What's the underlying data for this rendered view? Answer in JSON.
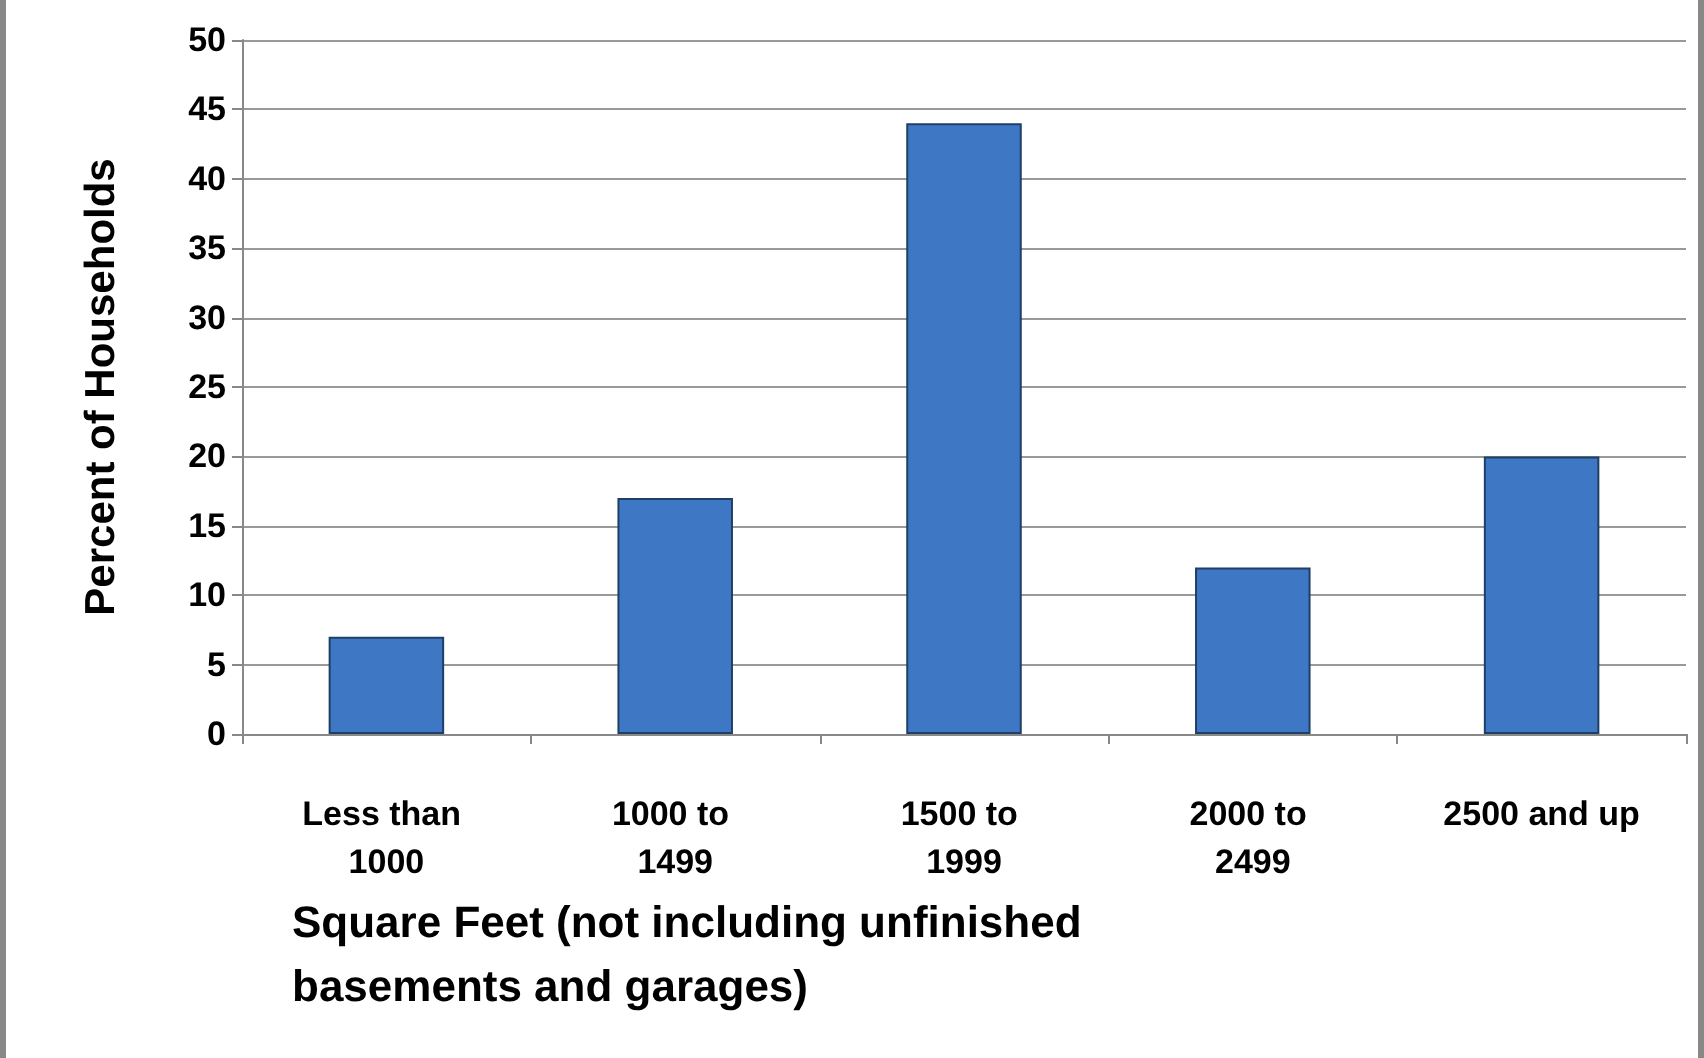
{
  "chart_data": {
    "type": "bar",
    "xlabel": "Square Feet (not including unfinished basements and garages)",
    "ylabel": "Percent of Households",
    "categories": [
      "Less than 1000",
      "1000 to 1499",
      "1500 to 1999",
      "2000 to 2499",
      "2500 and up"
    ],
    "values": [
      7,
      17,
      44,
      12,
      20
    ],
    "color": "#3e78c4",
    "ylim": [
      0,
      50
    ],
    "yticks": [
      0,
      5,
      10,
      15,
      20,
      25,
      30,
      35,
      40,
      45,
      50
    ],
    "grid": "y"
  }
}
